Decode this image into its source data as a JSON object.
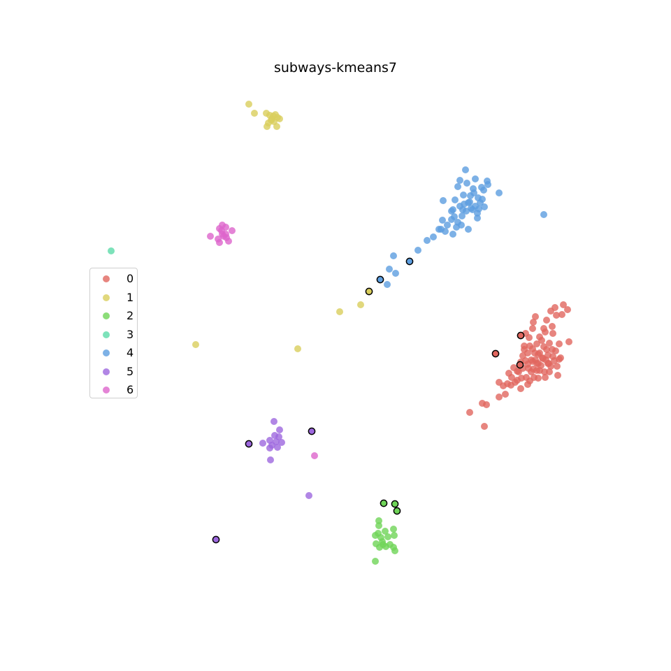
{
  "chart_data": {
    "type": "scatter",
    "title": "subways-kmeans7",
    "xlabel": "",
    "ylabel": "",
    "axes_visible": false,
    "grid": false,
    "legend_placement": "center-left",
    "xlim": [
      0,
      960
    ],
    "ylim": [
      0,
      960
    ],
    "series": [
      {
        "name": "0",
        "color": "#e1675f",
        "points": [
          [
            672,
            590
          ],
          [
            693,
            610
          ],
          [
            690,
            577
          ],
          [
            696,
            579
          ],
          [
            714,
            568
          ],
          [
            714,
            547
          ],
          [
            723,
            564
          ],
          [
            728,
            534
          ],
          [
            731,
            551
          ],
          [
            737,
            547
          ],
          [
            740,
            544
          ],
          [
            745,
            518
          ],
          [
            742,
            532
          ],
          [
            746,
            541
          ],
          [
            748,
            509
          ],
          [
            750,
            495
          ],
          [
            752,
            477
          ],
          [
            755,
            505
          ],
          [
            756,
            527
          ],
          [
            758,
            545
          ],
          [
            760,
            515
          ],
          [
            762,
            499
          ],
          [
            763,
            461
          ],
          [
            764,
            540
          ],
          [
            766,
            515
          ],
          [
            768,
            520
          ],
          [
            770,
            507
          ],
          [
            772,
            482
          ],
          [
            774,
            523
          ],
          [
            776,
            512
          ],
          [
            778,
            496
          ],
          [
            779,
            532
          ],
          [
            780,
            475
          ],
          [
            782,
            458
          ],
          [
            784,
            508
          ],
          [
            785,
            520
          ],
          [
            786,
            491
          ],
          [
            788,
            445
          ],
          [
            790,
            467
          ],
          [
            791,
            510
          ],
          [
            793,
            516
          ],
          [
            794,
            440
          ],
          [
            796,
            451
          ],
          [
            797,
            524
          ],
          [
            798,
            537
          ],
          [
            800,
            492
          ],
          [
            802,
            512
          ],
          [
            804,
            450
          ],
          [
            806,
            436
          ],
          [
            812,
            443
          ],
          [
            814,
            489
          ],
          [
            760,
            532
          ],
          [
            752,
            516
          ],
          [
            766,
            453
          ],
          [
            772,
            505
          ],
          [
            781,
            515
          ],
          [
            788,
            524
          ],
          [
            778,
            470
          ],
          [
            768,
            492
          ],
          [
            757,
            483
          ],
          [
            745,
            556
          ],
          [
            755,
            550
          ],
          [
            748,
            527
          ],
          [
            735,
            526
          ],
          [
            763,
            528
          ],
          [
            795,
            502
          ],
          [
            800,
            514
          ],
          [
            786,
            532
          ],
          [
            770,
            541
          ],
          [
            758,
            495
          ],
          [
            762,
            470
          ],
          [
            790,
            500
          ],
          [
            775,
            487
          ],
          [
            782,
            500
          ],
          [
            765,
            505
          ],
          [
            772,
            530
          ],
          [
            780,
            540
          ],
          [
            791,
            477
          ],
          [
            740,
            531
          ],
          [
            726,
            549
          ],
          [
            720,
            552
          ],
          [
            732,
            540
          ],
          [
            753,
            540
          ],
          [
            770,
            520
          ],
          [
            777,
            513
          ],
          [
            784,
            520
          ],
          [
            762,
            517
          ],
          [
            755,
            521
          ],
          [
            768,
            530
          ],
          [
            750,
            500
          ]
        ],
        "outlined_points": [
          [
            709,
            506
          ],
          [
            745,
            480
          ],
          [
            744,
            522
          ]
        ]
      },
      {
        "name": "1",
        "color": "#d9ce5c",
        "points": [
          [
            356,
            149
          ],
          [
            364,
            162
          ],
          [
            381,
            162
          ],
          [
            386,
            165
          ],
          [
            389,
            170
          ],
          [
            391,
            166
          ],
          [
            394,
            164
          ],
          [
            397,
            168
          ],
          [
            400,
            170
          ],
          [
            384,
            176
          ],
          [
            392,
            174
          ],
          [
            382,
            181
          ],
          [
            396,
            181
          ],
          [
            388,
            172
          ],
          [
            486,
            446
          ],
          [
            516,
            436
          ],
          [
            426,
            499
          ],
          [
            280,
            493
          ]
        ],
        "outlined_points": [
          [
            528,
            417
          ]
        ]
      },
      {
        "name": "2",
        "color": "#6fd458",
        "points": [
          [
            542,
            745
          ],
          [
            542,
            752
          ],
          [
            541,
            763
          ],
          [
            537,
            766
          ],
          [
            545,
            769
          ],
          [
            551,
            760
          ],
          [
            555,
            768
          ],
          [
            547,
            775
          ],
          [
            543,
            783
          ],
          [
            538,
            778
          ],
          [
            548,
            779
          ],
          [
            552,
            782
          ],
          [
            558,
            779
          ],
          [
            563,
            783
          ],
          [
            564,
            766
          ],
          [
            563,
            757
          ],
          [
            565,
            788
          ],
          [
            537,
            803
          ]
        ],
        "outlined_points": [
          [
            549,
            720
          ],
          [
            565,
            721
          ],
          [
            568,
            731
          ]
        ]
      },
      {
        "name": "3",
        "color": "#5cdba9",
        "points": [
          [
            159,
            359
          ]
        ],
        "outlined_points": []
      },
      {
        "name": "4",
        "color": "#5d9ee0",
        "points": [
          [
            666,
            243
          ],
          [
            680,
            256
          ],
          [
            697,
            259
          ],
          [
            714,
            276
          ],
          [
            698,
            264
          ],
          [
            689,
            268
          ],
          [
            677,
            270
          ],
          [
            668,
            262
          ],
          [
            655,
            267
          ],
          [
            663,
            279
          ],
          [
            672,
            289
          ],
          [
            684,
            283
          ],
          [
            693,
            296
          ],
          [
            683,
            305
          ],
          [
            674,
            298
          ],
          [
            667,
            302
          ],
          [
            658,
            295
          ],
          [
            651,
            286
          ],
          [
            634,
            287
          ],
          [
            646,
            302
          ],
          [
            633,
            315
          ],
          [
            628,
            328
          ],
          [
            637,
            331
          ],
          [
            648,
            335
          ],
          [
            620,
            339
          ],
          [
            611,
            344
          ],
          [
            598,
            358
          ],
          [
            563,
            366
          ],
          [
            557,
            385
          ],
          [
            566,
            391
          ],
          [
            554,
            407
          ],
          [
            670,
            328
          ],
          [
            687,
            290
          ],
          [
            778,
            307
          ],
          [
            655,
            318
          ],
          [
            661,
            309
          ],
          [
            680,
            295
          ],
          [
            690,
            285
          ],
          [
            648,
            300
          ],
          [
            664,
            292
          ],
          [
            653,
            325
          ],
          [
            640,
            322
          ],
          [
            673,
            280
          ],
          [
            658,
            258
          ],
          [
            685,
            299
          ],
          [
            646,
            314
          ],
          [
            631,
            328
          ],
          [
            662,
            300
          ],
          [
            678,
            276
          ],
          [
            692,
            272
          ],
          [
            650,
            310
          ],
          [
            660,
            322
          ],
          [
            676,
            300
          ],
          [
            683,
            312
          ],
          [
            670,
            290
          ]
        ],
        "outlined_points": [
          [
            544,
            400
          ],
          [
            586,
            374
          ]
        ]
      },
      {
        "name": "5",
        "color": "#9d68de",
        "points": [
          [
            392,
            603
          ],
          [
            400,
            615
          ],
          [
            393,
            623
          ],
          [
            399,
            625
          ],
          [
            395,
            632
          ],
          [
            403,
            633
          ],
          [
            376,
            634
          ],
          [
            386,
            630
          ],
          [
            389,
            637
          ],
          [
            386,
            641
          ],
          [
            397,
            640
          ],
          [
            387,
            658
          ],
          [
            442,
            709
          ]
        ],
        "outlined_points": [
          [
            356,
            635
          ],
          [
            446,
            617
          ],
          [
            309,
            772
          ]
        ]
      },
      {
        "name": "6",
        "color": "#dd65cc",
        "points": [
          [
            301,
            338
          ],
          [
            314,
            327
          ],
          [
            318,
            322
          ],
          [
            323,
            325
          ],
          [
            332,
            330
          ],
          [
            318,
            335
          ],
          [
            324,
            340
          ],
          [
            312,
            342
          ],
          [
            314,
            347
          ],
          [
            320,
            338
          ],
          [
            327,
            345
          ],
          [
            323,
            335
          ],
          [
            317,
            330
          ],
          [
            450,
            652
          ]
        ],
        "outlined_points": []
      }
    ]
  }
}
